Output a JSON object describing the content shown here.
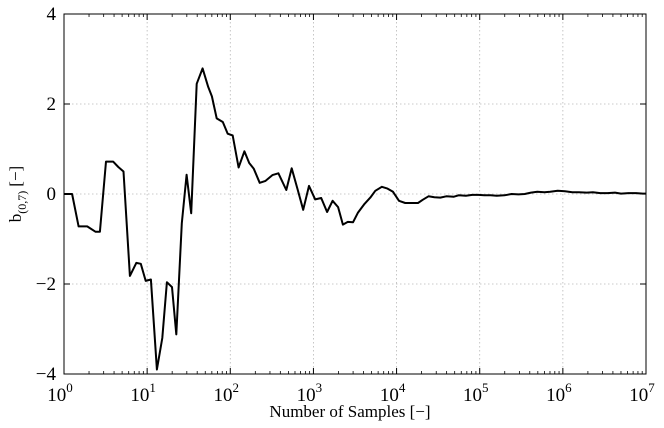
{
  "chart_data": {
    "type": "line",
    "title": "",
    "xlabel": "Number of Samples [−]",
    "ylabel_main": "b",
    "ylabel_sub": "(0,7)",
    "ylabel_unit": "[−]",
    "x_scale": "log",
    "xlim": [
      1,
      10000000
    ],
    "ylim": [
      -4,
      4
    ],
    "grid": true,
    "x_ticks": [
      {
        "value": 1,
        "base": "10",
        "exp": "0"
      },
      {
        "value": 10,
        "base": "10",
        "exp": "1"
      },
      {
        "value": 100,
        "base": "10",
        "exp": "2"
      },
      {
        "value": 1000,
        "base": "10",
        "exp": "3"
      },
      {
        "value": 10000,
        "base": "10",
        "exp": "4"
      },
      {
        "value": 100000,
        "base": "10",
        "exp": "5"
      },
      {
        "value": 1000000,
        "base": "10",
        "exp": "6"
      },
      {
        "value": 10000000,
        "base": "10",
        "exp": "7"
      }
    ],
    "y_ticks": [
      {
        "value": -4,
        "label": "−4"
      },
      {
        "value": -2,
        "label": "−2"
      },
      {
        "value": 0,
        "label": "0"
      },
      {
        "value": 2,
        "label": "2"
      },
      {
        "value": 4,
        "label": "4"
      }
    ],
    "line_color": "#000000",
    "series": [
      {
        "x": [
          1,
          1.25,
          1.5,
          1.9,
          2.4,
          2.7,
          3.2,
          3.9,
          4.5,
          5.2,
          6.2,
          7.4,
          8.4,
          9.6,
          11.1,
          13.1,
          15.2,
          17.3,
          19.9,
          22.4,
          26.1,
          29.8,
          33.9,
          39.5,
          46.5,
          54.2,
          60.1,
          68.7,
          81.2,
          93.2,
          107,
          126,
          148,
          169,
          192,
          226,
          265,
          321,
          379,
          472,
          548,
          644,
          754,
          884,
          1050,
          1240,
          1460,
          1700,
          1980,
          2260,
          2590,
          2990,
          3420,
          4110,
          4830,
          5550,
          6650,
          7770,
          9070,
          10700,
          12700,
          15300,
          18100,
          20600,
          24200,
          28500,
          33600,
          39600,
          48900,
          55800,
          68300,
          81300,
          96600,
          114000,
          135000,
          160000,
          198000,
          242000,
          293000,
          348000,
          414000,
          493000,
          599000,
          705000,
          866000,
          1060000,
          1300000,
          1560000,
          1940000,
          2300000,
          2810000,
          3440000,
          4240000,
          5000000,
          6140000,
          7600000,
          9160000,
          10000000
        ],
        "y": [
          0.0,
          0.0,
          -0.72,
          -0.72,
          -0.84,
          -0.84,
          0.72,
          0.72,
          0.6,
          0.5,
          -1.82,
          -1.53,
          -1.55,
          -1.93,
          -1.9,
          -3.9,
          -3.2,
          -1.96,
          -2.07,
          -3.12,
          -0.65,
          0.43,
          -0.43,
          2.45,
          2.79,
          2.38,
          2.17,
          1.68,
          1.6,
          1.34,
          1.3,
          0.59,
          0.95,
          0.69,
          0.56,
          0.25,
          0.29,
          0.42,
          0.46,
          0.09,
          0.57,
          0.11,
          -0.35,
          0.18,
          -0.12,
          -0.09,
          -0.4,
          -0.15,
          -0.29,
          -0.68,
          -0.62,
          -0.63,
          -0.42,
          -0.22,
          -0.08,
          0.07,
          0.16,
          0.12,
          0.05,
          -0.15,
          -0.2,
          -0.2,
          -0.2,
          -0.13,
          -0.05,
          -0.07,
          -0.08,
          -0.05,
          -0.06,
          -0.03,
          -0.04,
          -0.02,
          -0.02,
          -0.03,
          -0.03,
          -0.04,
          -0.03,
          0.0,
          -0.01,
          0.0,
          0.03,
          0.05,
          0.04,
          0.05,
          0.07,
          0.06,
          0.04,
          0.04,
          0.03,
          0.04,
          0.02,
          0.02,
          0.03,
          0.01,
          0.02,
          0.02,
          0.01,
          0.01
        ]
      }
    ]
  }
}
